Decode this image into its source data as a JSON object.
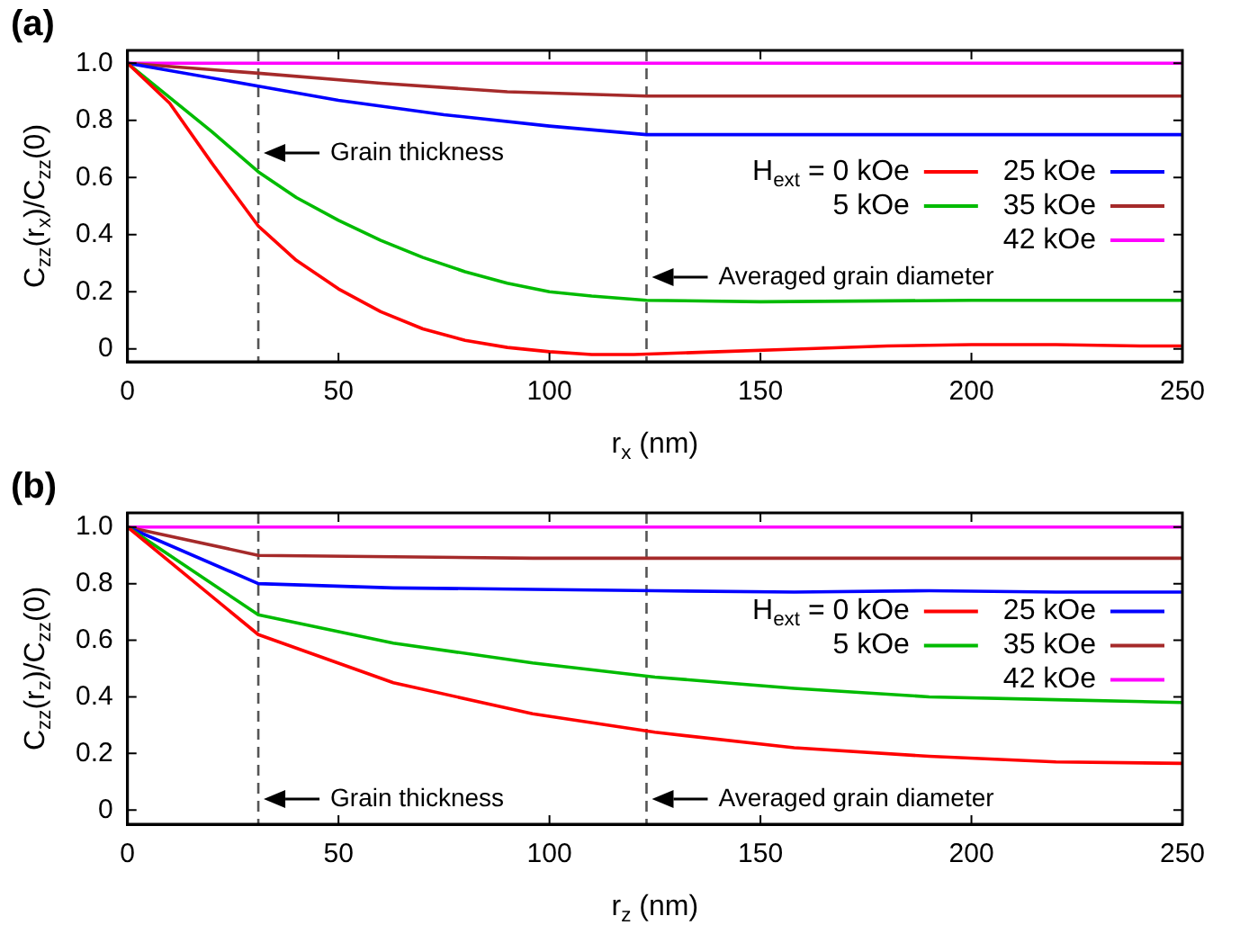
{
  "chart_data": [
    {
      "type": "line",
      "title": "(a)",
      "xlabel": "r$_{x}$ (nm)",
      "ylabel": "C$_{zz}$(r$_{x}$)/C$_{zz}$(0)",
      "xlim": [
        0,
        250
      ],
      "ylim": [
        -0.045,
        1.045
      ],
      "xticks": [
        0,
        50,
        100,
        150,
        200,
        250
      ],
      "yticks": [
        0,
        {
          "value": 0.2,
          "label": "0.2"
        },
        {
          "value": 0.4,
          "label": "0.4"
        },
        {
          "value": 0.6,
          "label": "0.6"
        },
        {
          "value": 0.8,
          "label": "0.8"
        },
        {
          "value": 1,
          "label": "1.0"
        }
      ],
      "legend": "right",
      "ref_lines": [
        {
          "axis": "x",
          "value": 31,
          "line_style": "dashed",
          "color": "#555555",
          "label": "Grain thickness"
        },
        {
          "axis": "x",
          "value": 123,
          "line_style": "dashed",
          "color": "#555555",
          "label": "Averaged grain diameter"
        }
      ],
      "series": [
        {
          "name": "H$_{ext}$ = 0 kOe",
          "color": "#ff0000",
          "x": [
            0,
            10,
            20,
            31,
            40,
            50,
            60,
            70,
            80,
            90,
            100,
            110,
            120,
            140,
            160,
            180,
            200,
            220,
            240,
            250
          ],
          "values": [
            1,
            0.86,
            0.65,
            0.43,
            0.31,
            0.21,
            0.13,
            0.07,
            0.03,
            0.005,
            -0.01,
            -0.02,
            -0.02,
            -0.01,
            0,
            0.01,
            0.015,
            0.015,
            0.01,
            0.01
          ]
        },
        {
          "name": "5 kOe",
          "color": "#00bb00",
          "x": [
            0,
            10,
            20,
            31,
            40,
            50,
            60,
            70,
            80,
            90,
            100,
            110,
            123,
            150,
            200,
            250
          ],
          "values": [
            1,
            0.88,
            0.76,
            0.62,
            0.53,
            0.45,
            0.38,
            0.32,
            0.27,
            0.23,
            0.2,
            0.185,
            0.17,
            0.165,
            0.17,
            0.17
          ]
        },
        {
          "name": "25 kOe",
          "color": "#0000ff",
          "x": [
            0,
            31,
            50,
            75,
            100,
            123,
            150,
            250
          ],
          "values": [
            1,
            0.92,
            0.87,
            0.82,
            0.78,
            0.75,
            0.75,
            0.75
          ]
        },
        {
          "name": "35 kOe",
          "color": "#a52a2a",
          "x": [
            0,
            31,
            60,
            90,
            123,
            250
          ],
          "values": [
            1,
            0.965,
            0.93,
            0.9,
            0.885,
            0.885
          ]
        },
        {
          "name": "42 kOe",
          "color": "#ff00ff",
          "x": [
            0,
            250
          ],
          "values": [
            1,
            1
          ]
        }
      ]
    },
    {
      "type": "line",
      "title": "(b)",
      "xlabel": "r$_{z}$ (nm)",
      "ylabel": "C$_{zz}$(r$_{z}$)/C$_{zz}$(0)",
      "xlim": [
        0,
        250
      ],
      "ylim": [
        -0.05,
        1.05
      ],
      "xticks": [
        0,
        50,
        100,
        150,
        200,
        250
      ],
      "yticks": [
        0,
        {
          "value": 0.2,
          "label": "0.2"
        },
        {
          "value": 0.4,
          "label": "0.4"
        },
        {
          "value": 0.6,
          "label": "0.6"
        },
        {
          "value": 0.8,
          "label": "0.8"
        },
        {
          "value": 1,
          "label": "1.0"
        }
      ],
      "legend": "right",
      "ref_lines": [
        {
          "axis": "x",
          "value": 31,
          "line_style": "dashed",
          "color": "#555555",
          "label": "Grain thickness"
        },
        {
          "axis": "x",
          "value": 123,
          "line_style": "dashed",
          "color": "#555555",
          "label": "Averaged grain diameter"
        }
      ],
      "series": [
        {
          "name": "H$_{ext}$ = 0 kOe",
          "color": "#ff0000",
          "x": [
            0,
            31,
            63,
            96,
            125,
            158,
            190,
            220,
            250
          ],
          "values": [
            1,
            0.62,
            0.45,
            0.34,
            0.275,
            0.22,
            0.19,
            0.17,
            0.165
          ]
        },
        {
          "name": "5 kOe",
          "color": "#00bb00",
          "x": [
            0,
            31,
            63,
            96,
            125,
            158,
            190,
            220,
            250
          ],
          "values": [
            1,
            0.69,
            0.59,
            0.52,
            0.47,
            0.43,
            0.4,
            0.39,
            0.38
          ]
        },
        {
          "name": "25 kOe",
          "color": "#0000ff",
          "x": [
            0,
            31,
            63,
            96,
            125,
            158,
            190,
            220,
            250
          ],
          "values": [
            1,
            0.8,
            0.785,
            0.78,
            0.775,
            0.77,
            0.775,
            0.77,
            0.77
          ]
        },
        {
          "name": "35 kOe",
          "color": "#a52a2a",
          "x": [
            0,
            31,
            63,
            96,
            125,
            158,
            190,
            220,
            250
          ],
          "values": [
            1,
            0.9,
            0.895,
            0.89,
            0.89,
            0.89,
            0.89,
            0.89,
            0.89
          ]
        },
        {
          "name": "42 kOe",
          "color": "#ff00ff",
          "x": [
            0,
            250
          ],
          "values": [
            1,
            1
          ]
        }
      ]
    }
  ]
}
